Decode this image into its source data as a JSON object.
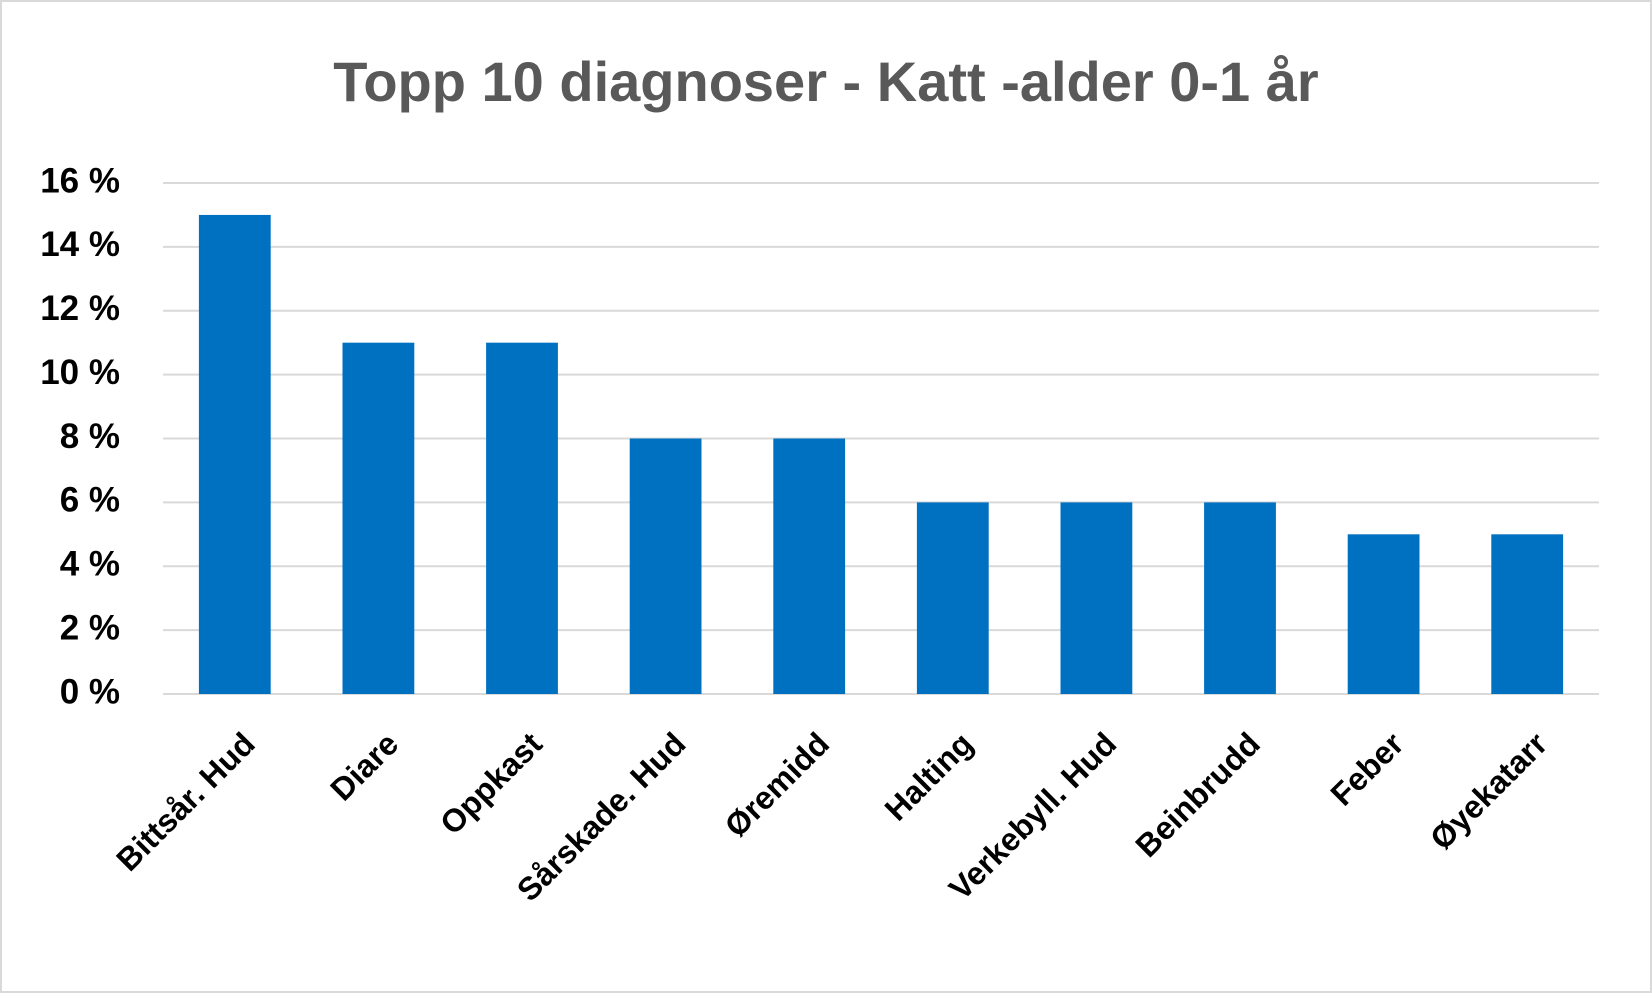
{
  "chart_data": {
    "type": "bar",
    "title": "Topp 10 diagnoser - Katt -alder 0-1 år",
    "categories": [
      "Bittsår. Hud",
      "Diare",
      "Oppkast",
      "Sårskade. Hud",
      "Øremidd",
      "Halting",
      "Verkebyll. Hud",
      "Beinbrudd",
      "Feber",
      "Øyekatarr"
    ],
    "values": [
      15,
      11,
      11,
      8,
      8,
      6,
      6,
      6,
      5,
      5
    ],
    "color": "#0070c0",
    "ylim": [
      0,
      16
    ],
    "yticks": [
      {
        "value": 0,
        "label": "0 %"
      },
      {
        "value": 2,
        "label": "2 %"
      },
      {
        "value": 4,
        "label": "4 %"
      },
      {
        "value": 6,
        "label": "6 %"
      },
      {
        "value": 8,
        "label": "8 %"
      },
      {
        "value": 10,
        "label": "10 %"
      },
      {
        "value": 12,
        "label": "12 %"
      },
      {
        "value": 14,
        "label": "14 %"
      },
      {
        "value": 16,
        "label": "16 %"
      }
    ],
    "grid": true
  }
}
